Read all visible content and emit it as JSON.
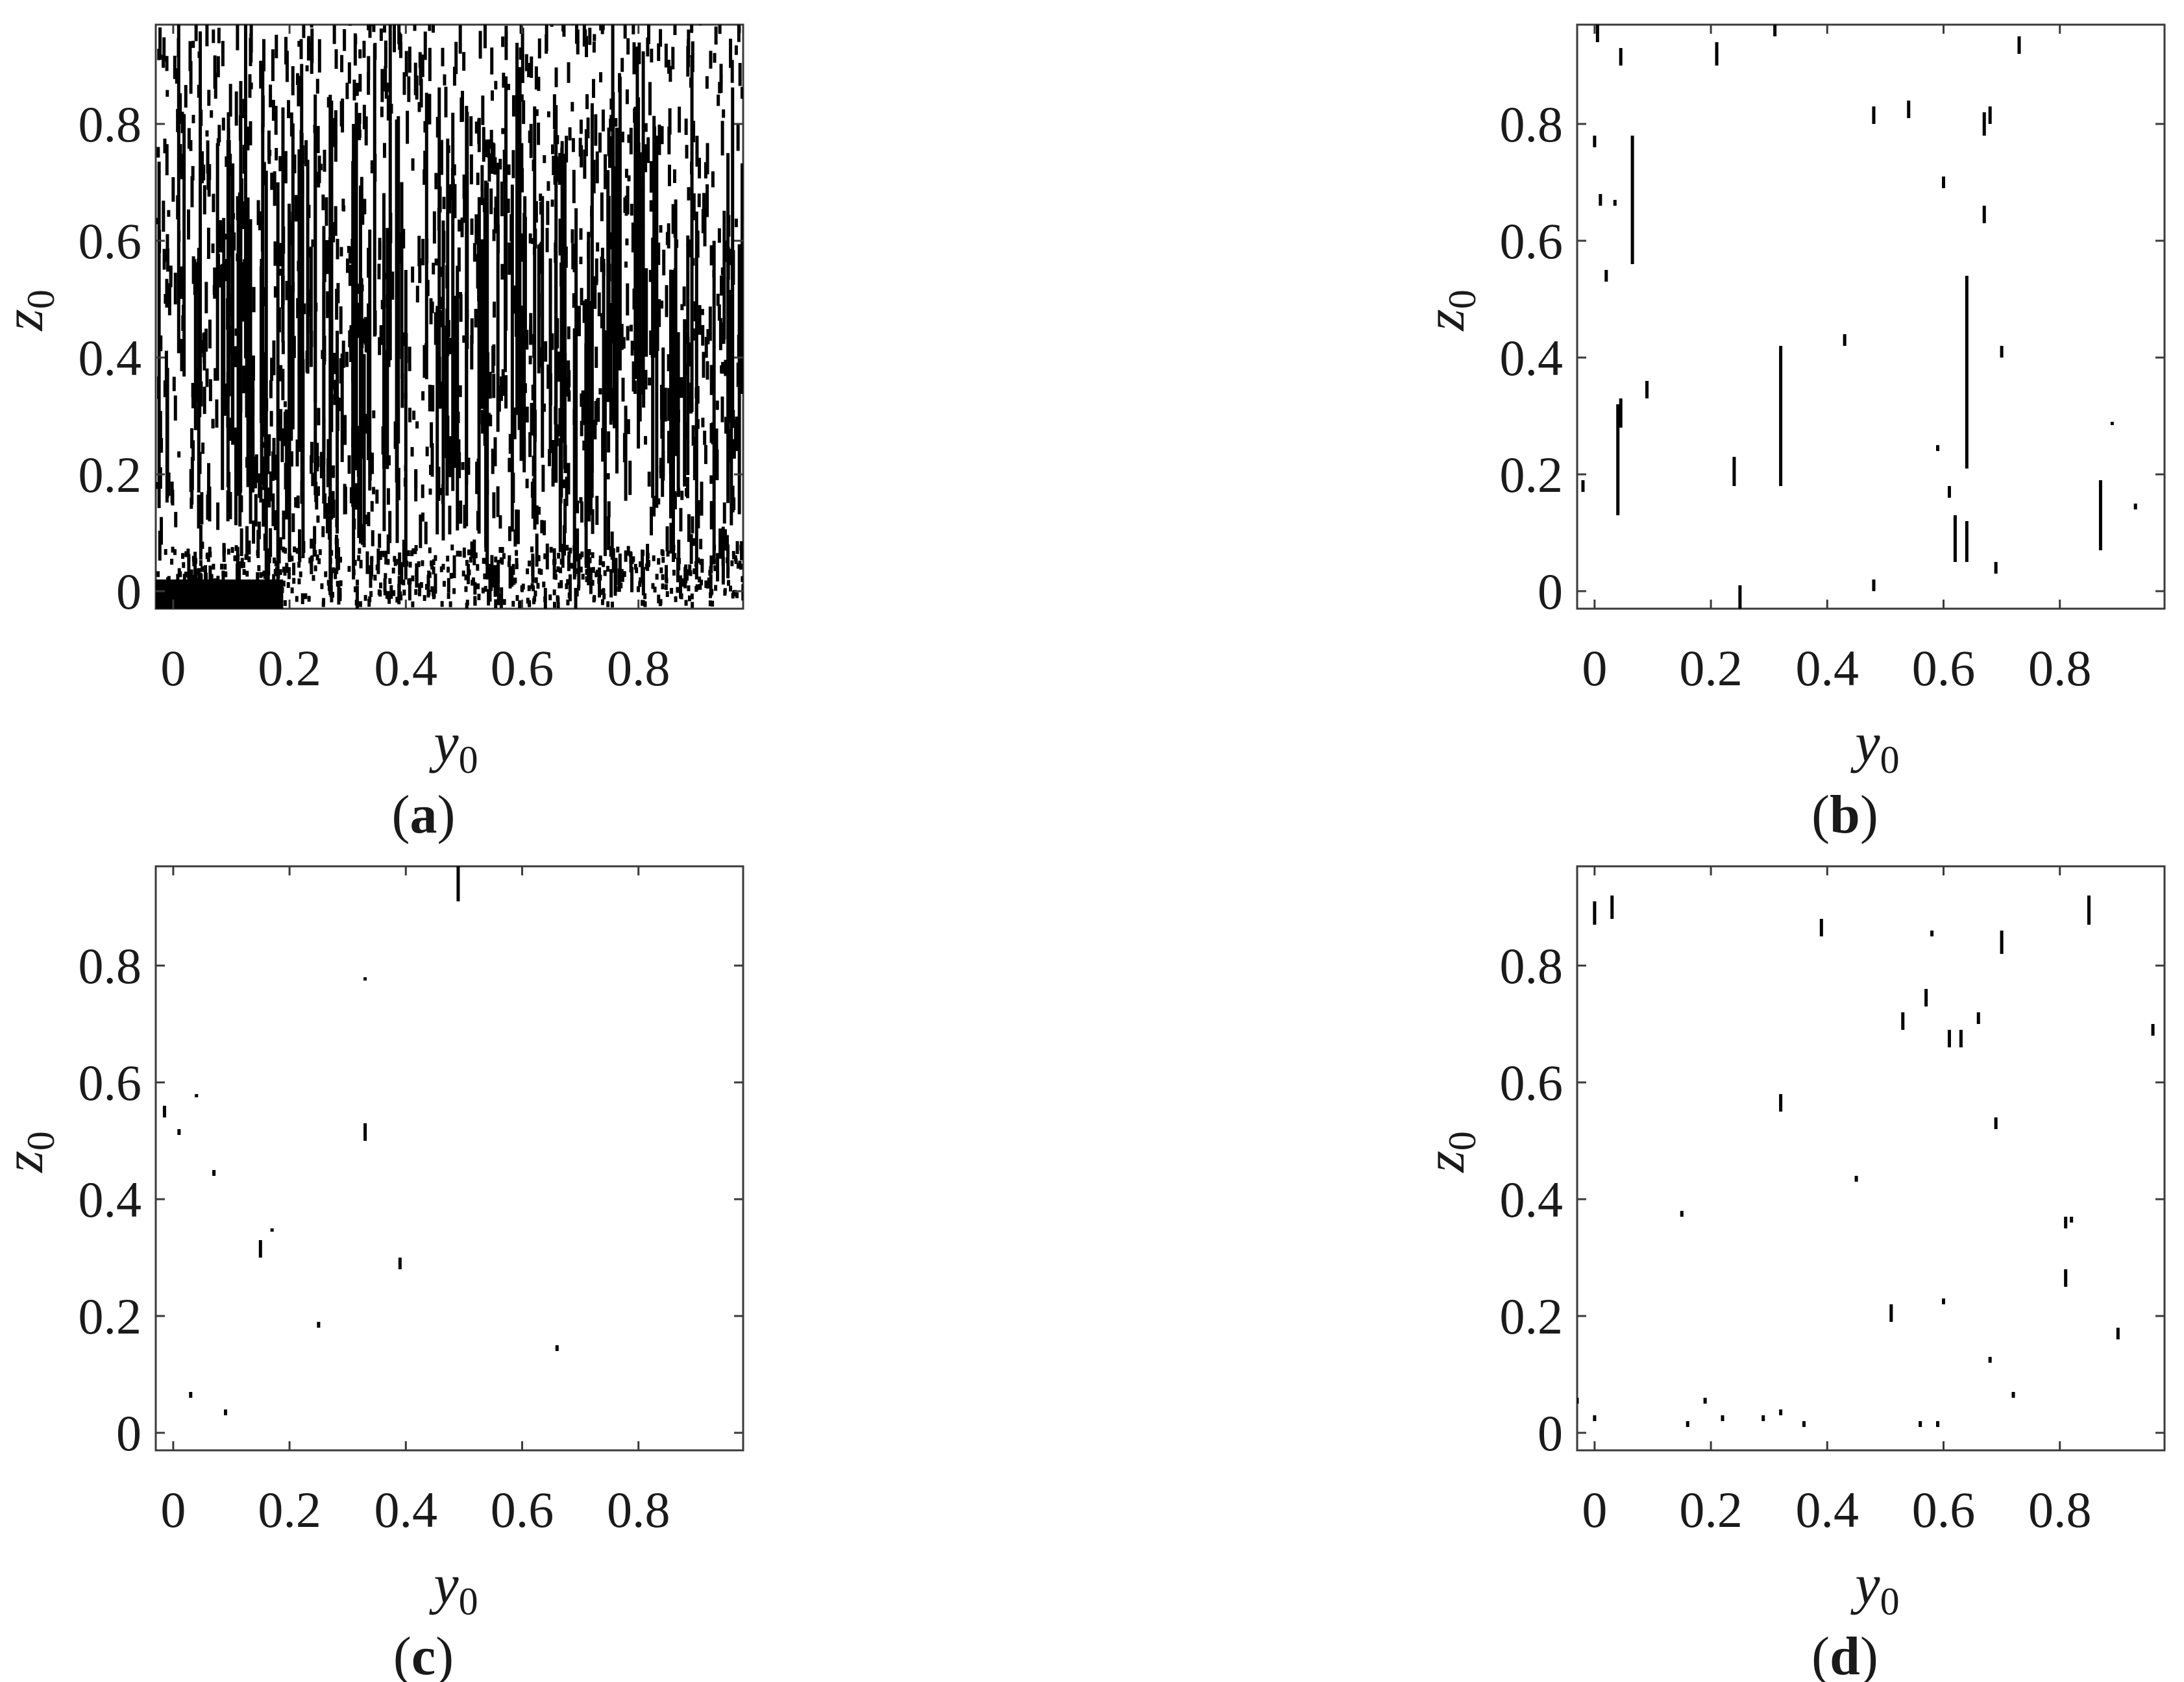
{
  "chart_data": [
    {
      "type": "scatter",
      "panel_label": "a",
      "xlabel": "y0",
      "ylabel": "z0",
      "xlim": [
        -0.03,
        0.98
      ],
      "ylim": [
        -0.03,
        0.97
      ],
      "xticks": [
        0,
        0.2,
        0.4,
        0.6,
        0.8
      ],
      "yticks": [
        0,
        0.2,
        0.4,
        0.6,
        0.8
      ],
      "xtick_labels": [
        "0",
        "0.2",
        "0.4",
        "0.6",
        "0.8"
      ],
      "ytick_labels": [
        "0",
        "0.2",
        "0.4",
        "0.6",
        "0.8"
      ],
      "density": "dense",
      "description_segments": [
        [
          0.16,
          0.02,
          0.72
        ],
        [
          0.18,
          0.02,
          0.7
        ],
        [
          0.2,
          0.05,
          0.65
        ],
        [
          0.27,
          0.02,
          0.85
        ],
        [
          0.31,
          0.02,
          0.8
        ],
        [
          0.4,
          0.02,
          0.55
        ],
        [
          0.54,
          0.02,
          0.7
        ],
        [
          0.69,
          0.02,
          0.45
        ],
        [
          0.71,
          0.05,
          0.5
        ],
        [
          0.86,
          0.05,
          0.55
        ],
        [
          0.9,
          0.02,
          0.65
        ],
        [
          0.93,
          0.05,
          0.6
        ]
      ]
    },
    {
      "type": "scatter",
      "panel_label": "b",
      "xlabel": "y0",
      "ylabel": "z0",
      "xlim": [
        -0.03,
        0.98
      ],
      "ylim": [
        -0.03,
        0.97
      ],
      "xticks": [
        0,
        0.2,
        0.4,
        0.6,
        0.8
      ],
      "yticks": [
        0,
        0.2,
        0.4,
        0.6,
        0.8
      ],
      "xtick_labels": [
        "0",
        "0.2",
        "0.4",
        "0.6",
        "0.8"
      ],
      "ytick_labels": [
        "0",
        "0.2",
        "0.4",
        "0.6",
        "0.8"
      ],
      "segments": [
        [
          0.005,
          0.94,
          0.97
        ],
        [
          0.045,
          0.9,
          0.93
        ],
        [
          0.21,
          0.9,
          0.94
        ],
        [
          0.31,
          0.95,
          0.97
        ],
        [
          0.73,
          0.92,
          0.95
        ],
        [
          0.065,
          0.56,
          0.78
        ],
        [
          0.04,
          0.13,
          0.32
        ],
        [
          0.045,
          0.28,
          0.33
        ],
        [
          0.32,
          0.18,
          0.42
        ],
        [
          0.64,
          0.21,
          0.54
        ],
        [
          0.87,
          0.07,
          0.19
        ],
        [
          0.25,
          -0.03,
          0.01
        ],
        [
          0.09,
          0.33,
          0.36
        ],
        [
          0.48,
          0.8,
          0.83
        ],
        [
          0.54,
          0.81,
          0.84
        ],
        [
          0.67,
          0.78,
          0.82
        ],
        [
          0.68,
          0.8,
          0.83
        ],
        [
          0.6,
          0.69,
          0.71
        ],
        [
          0.67,
          0.63,
          0.66
        ],
        [
          0.7,
          0.4,
          0.42
        ],
        [
          0.62,
          0.05,
          0.13
        ],
        [
          0.64,
          0.05,
          0.12
        ],
        [
          0.61,
          0.16,
          0.18
        ],
        [
          0.59,
          0.24,
          0.25
        ],
        [
          0.24,
          0.18,
          0.23
        ],
        [
          0.89,
          0.29,
          0.29
        ],
        [
          0.93,
          0.14,
          0.15
        ],
        [
          -0.02,
          0.17,
          0.19
        ],
        [
          0.0,
          0.76,
          0.78
        ],
        [
          0.02,
          0.53,
          0.55
        ],
        [
          0.01,
          0.66,
          0.68
        ],
        [
          0.035,
          0.66,
          0.67
        ],
        [
          0.43,
          0.42,
          0.44
        ],
        [
          0.48,
          0.0,
          0.02
        ],
        [
          0.69,
          0.03,
          0.05
        ]
      ]
    },
    {
      "type": "scatter",
      "panel_label": "c",
      "xlabel": "y0",
      "ylabel": "z0",
      "xlim": [
        -0.03,
        0.98
      ],
      "ylim": [
        -0.03,
        0.97
      ],
      "xticks": [
        0,
        0.2,
        0.4,
        0.6,
        0.8
      ],
      "yticks": [
        0,
        0.2,
        0.4,
        0.6,
        0.8
      ],
      "xtick_labels": [
        "0",
        "0.2",
        "0.4",
        "0.6",
        "0.8"
      ],
      "ytick_labels": [
        "0",
        "0.2",
        "0.4",
        "0.6",
        "0.8"
      ],
      "segments": [
        [
          0.49,
          0.91,
          0.97
        ],
        [
          0.33,
          0.5,
          0.53
        ],
        [
          0.15,
          0.3,
          0.33
        ],
        [
          0.39,
          0.28,
          0.3
        ],
        [
          0.66,
          0.14,
          0.15
        ],
        [
          -0.015,
          0.54,
          0.56
        ],
        [
          0.07,
          0.44,
          0.45
        ],
        [
          0.25,
          0.18,
          0.19
        ],
        [
          0.03,
          0.06,
          0.07
        ],
        [
          0.09,
          0.03,
          0.04
        ],
        [
          0.33,
          0.78,
          0.78
        ],
        [
          0.04,
          0.58,
          0.58
        ],
        [
          0.17,
          0.35,
          0.35
        ],
        [
          0.01,
          0.51,
          0.52
        ]
      ]
    },
    {
      "type": "scatter",
      "panel_label": "d",
      "xlabel": "y0",
      "ylabel": "z0",
      "xlim": [
        -0.03,
        0.98
      ],
      "ylim": [
        -0.03,
        0.97
      ],
      "xticks": [
        0,
        0.2,
        0.4,
        0.6,
        0.8
      ],
      "yticks": [
        0,
        0.2,
        0.4,
        0.6,
        0.8
      ],
      "xtick_labels": [
        "0",
        "0.2",
        "0.4",
        "0.6",
        "0.8"
      ],
      "ytick_labels": [
        "0",
        "0.2",
        "0.4",
        "0.6",
        "0.8"
      ],
      "segments": [
        [
          0.0,
          0.87,
          0.91
        ],
        [
          0.03,
          0.88,
          0.92
        ],
        [
          0.39,
          0.85,
          0.88
        ],
        [
          0.85,
          0.87,
          0.92
        ],
        [
          0.7,
          0.82,
          0.86
        ],
        [
          0.57,
          0.73,
          0.76
        ],
        [
          0.53,
          0.69,
          0.72
        ],
        [
          0.61,
          0.66,
          0.69
        ],
        [
          0.63,
          0.66,
          0.69
        ],
        [
          0.66,
          0.7,
          0.72
        ],
        [
          0.58,
          0.85,
          0.86
        ],
        [
          0.96,
          0.68,
          0.7
        ],
        [
          0.32,
          0.55,
          0.58
        ],
        [
          0.69,
          0.52,
          0.54
        ],
        [
          0.45,
          0.43,
          0.44
        ],
        [
          0.15,
          0.37,
          0.38
        ],
        [
          0.81,
          0.35,
          0.37
        ],
        [
          0.82,
          0.36,
          0.37
        ],
        [
          0.81,
          0.25,
          0.28
        ],
        [
          0.51,
          0.19,
          0.22
        ],
        [
          0.6,
          0.22,
          0.23
        ],
        [
          0.9,
          0.16,
          0.18
        ],
        [
          0.68,
          0.12,
          0.13
        ],
        [
          0.72,
          0.06,
          0.07
        ],
        [
          0.19,
          0.05,
          0.06
        ],
        [
          0.22,
          0.02,
          0.03
        ],
        [
          0.29,
          0.02,
          0.03
        ],
        [
          0.32,
          0.03,
          0.04
        ],
        [
          0.16,
          0.01,
          0.02
        ],
        [
          0.36,
          0.01,
          0.02
        ],
        [
          0.56,
          0.01,
          0.02
        ],
        [
          0.59,
          0.01,
          0.02
        ],
        [
          0.0,
          0.02,
          0.03
        ],
        [
          -0.03,
          0.05,
          0.06
        ]
      ]
    }
  ]
}
